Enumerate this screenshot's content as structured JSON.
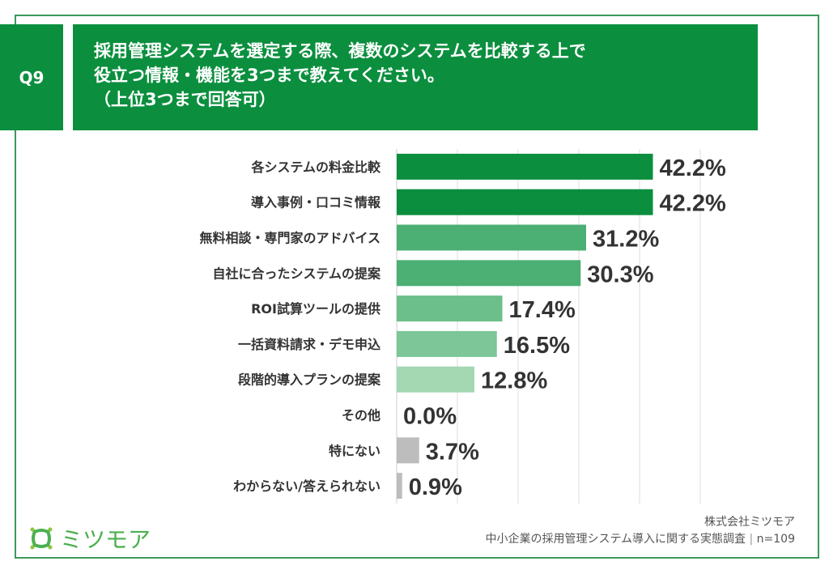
{
  "header": {
    "question_no": "Q9",
    "title_lines": [
      "採用管理システムを選定する際、複数のシステムを比較する上で",
      "役立つ情報・機能を3つまで教えてください。",
      "（上位3つまで回答可）"
    ]
  },
  "chart_data": {
    "type": "bar",
    "orientation": "horizontal",
    "xlim": [
      0,
      50
    ],
    "grid": true,
    "categories": [
      "各システムの料金比較",
      "導入事例・口コミ情報",
      "無料相談・専門家のアドバイス",
      "自社に合ったシステムの提案",
      "ROI試算ツールの提供",
      "一括資料請求・デモ申込",
      "段階的導入プランの提案",
      "その他",
      "特にない",
      "わからない/答えられない"
    ],
    "values": [
      42.2,
      42.2,
      31.2,
      30.3,
      17.4,
      16.5,
      12.8,
      0.0,
      3.7,
      0.9
    ],
    "labels": [
      "42.2%",
      "42.2%",
      "31.2%",
      "30.3%",
      "17.4%",
      "16.5%",
      "12.8%",
      "0.0%",
      "3.7%",
      "0.9%"
    ],
    "colors": [
      "#0b8f3e",
      "#0b8f3e",
      "#4caf74",
      "#4caf74",
      "#6cbf8a",
      "#7cc698",
      "#a3d8b3",
      "#bdbdbd",
      "#bdbdbd",
      "#bdbdbd"
    ]
  },
  "footer": {
    "logo": "ミツモア",
    "company": "株式会社ミツモア",
    "survey": "中小企業の採用管理システム導入に関する実態調査",
    "n": "n=109"
  }
}
